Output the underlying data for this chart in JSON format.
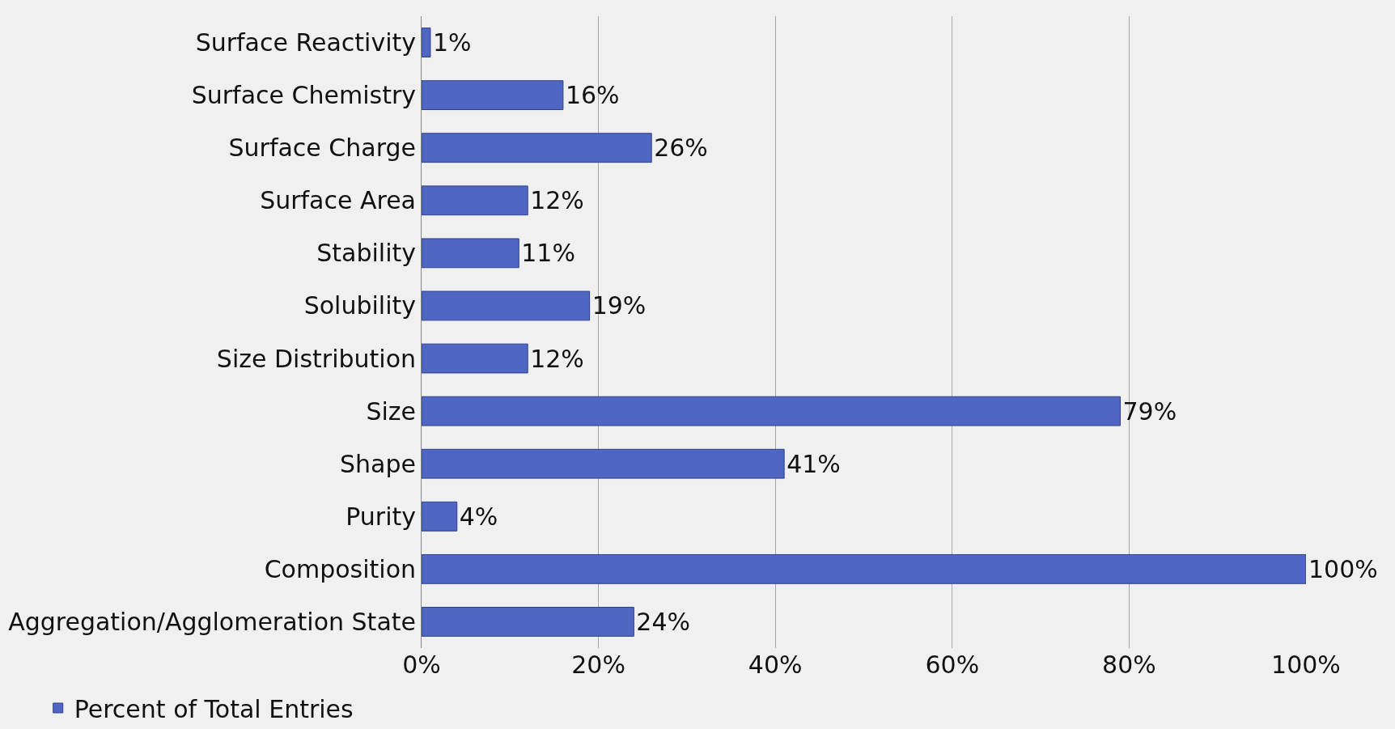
{
  "chart_data": {
    "type": "bar",
    "orientation": "horizontal",
    "categories": [
      "Surface Reactivity",
      "Surface Chemistry",
      "Surface Charge",
      "Surface Area",
      "Stability",
      "Solubility",
      "Size Distribution",
      "Size",
      "Shape",
      "Purity",
      "Composition",
      "Aggregation/Agglomeration State"
    ],
    "series": [
      {
        "name": "Percent of Total Entries",
        "color": "#4f66c2",
        "values": [
          1,
          16,
          26,
          12,
          11,
          19,
          12,
          79,
          41,
          4,
          100,
          24
        ],
        "value_labels": [
          "1%",
          "16%",
          "26%",
          "12%",
          "11%",
          "19%",
          "12%",
          "79%",
          "41%",
          "4%",
          "100%",
          "24%"
        ]
      }
    ],
    "xlim": [
      0,
      100
    ],
    "xticks": [
      {
        "value": 0,
        "label": "0%"
      },
      {
        "value": 20,
        "label": "20%"
      },
      {
        "value": 40,
        "label": "40%"
      },
      {
        "value": 60,
        "label": "60%"
      },
      {
        "value": 80,
        "label": "80%"
      },
      {
        "value": 100,
        "label": "100%"
      }
    ],
    "grid": "x",
    "legend": "bottom left"
  }
}
